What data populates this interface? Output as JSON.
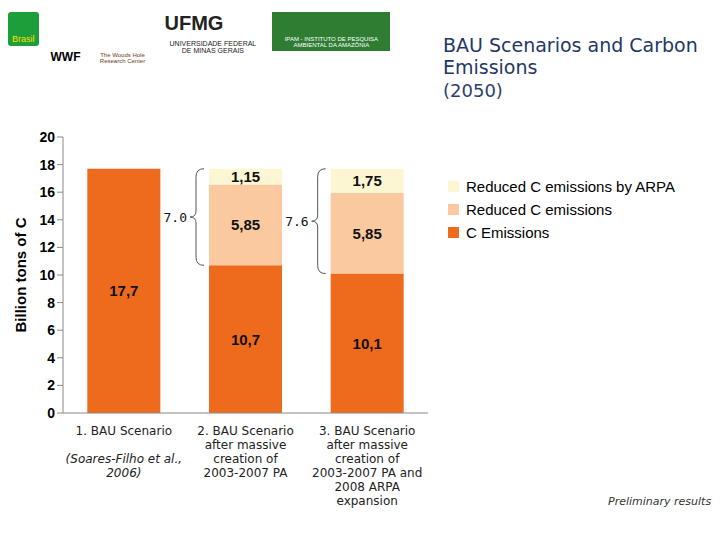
{
  "chart_data": {
    "type": "bar",
    "title": "BAU Scenarios and Carbon Emissions",
    "subtitle": "(2050)",
    "y_label": "Billion tons of C",
    "categories": [
      "1. BAU Scenario",
      "2. BAU Scenario after massive creation of 2003-2007 PA",
      "3. BAU Scenario after massive creation of 2003-2007 PA and 2008 ARPA expansion"
    ],
    "series": [
      {
        "name": "C Emissions",
        "color": "#ee6a1c",
        "values": [
          17.7,
          10.7,
          10.1
        ],
        "value_labels": [
          "17,7",
          "10,7",
          "10,1"
        ]
      },
      {
        "name": "Reduced C emissions",
        "color": "#fbc9a0",
        "values": [
          null,
          5.85,
          5.85
        ],
        "value_labels": [
          null,
          "5,85",
          "5,85"
        ]
      },
      {
        "name": "Reduced C emissions by ARPA",
        "color": "#fdf6d3",
        "values": [
          null,
          1.15,
          1.75
        ],
        "value_labels": [
          null,
          "1,15",
          "1,75"
        ]
      }
    ],
    "stacked": true,
    "data_labels": true,
    "grid": false,
    "ylim": [
      0,
      20
    ],
    "yticks": [
      0,
      2,
      4,
      6,
      8,
      10,
      12,
      14,
      16,
      18,
      20
    ],
    "category_note": {
      "category": 0,
      "text": "(Soares-Filho et al., 2006)"
    },
    "brackets": [
      {
        "category": 1,
        "text": "7.0"
      },
      {
        "category": 2,
        "text": "7.6"
      }
    ],
    "footnote": "Preliminary results",
    "logos": [
      "Brasil",
      "WWF",
      "The Woods Hole Research Center",
      "UFMG",
      "UNIVERSIDADE FEDERAL DE MINAS GERAIS",
      "IPAM - INSTITUTO DE PESQUISA AMBIENTAL DA AMAZÔNIA"
    ]
  }
}
